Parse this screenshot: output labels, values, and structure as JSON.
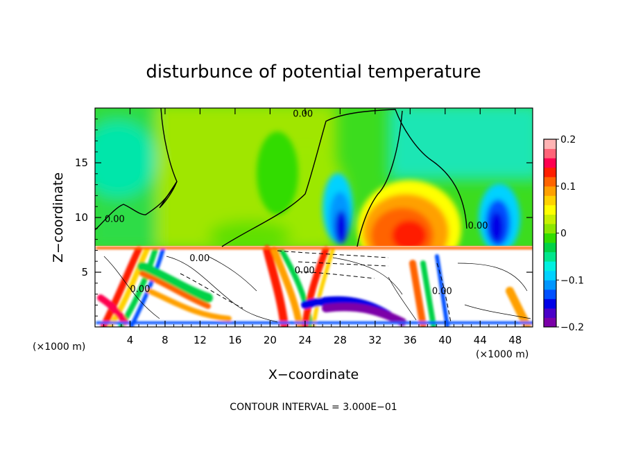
{
  "chart_data": {
    "type": "heatmap",
    "title": "disturbunce of potential temperature",
    "xlabel": "X−coordinate",
    "ylabel": "Z−coordinate",
    "x_unit": "(×1000 m)",
    "x_unit_right": "(×1000 m)",
    "footer": "CONTOUR INTERVAL = 3.000E−01",
    "xlim": [
      0,
      50
    ],
    "ylim": [
      0,
      20
    ],
    "xticks": [
      4,
      8,
      12,
      16,
      20,
      24,
      28,
      32,
      36,
      40,
      44,
      48
    ],
    "yticks": [
      5,
      10,
      15
    ],
    "colorbar": {
      "range": [
        -0.2,
        0.2
      ],
      "tick_values": [
        0.2,
        0.1,
        0,
        -0.1,
        -0.2
      ],
      "tick_labels": [
        "0.2",
        "0.1",
        "0",
        "−0.1",
        "−0.2"
      ],
      "colors": [
        "#7b00a8",
        "#4a00c8",
        "#0000e6",
        "#0050ff",
        "#0096ff",
        "#00d2ff",
        "#00f0e0",
        "#00e68c",
        "#00d246",
        "#32dc00",
        "#8ce600",
        "#c8f000",
        "#ffff00",
        "#ffd200",
        "#ffa000",
        "#ff6400",
        "#ff1e00",
        "#ff0050",
        "#ff6478",
        "#ffb4b4"
      ]
    },
    "contour_labels": [
      {
        "text": "0.00",
        "x": 22.6,
        "z": 19.2
      },
      {
        "text": "0.00",
        "x": 1.1,
        "z": 9.6
      },
      {
        "text": "0.00",
        "x": 42.6,
        "z": 9.0
      },
      {
        "text": "0.00",
        "x": 10.8,
        "z": 6.0
      },
      {
        "text": "0.00",
        "x": 22.8,
        "z": 4.9
      },
      {
        "text": "0.00",
        "x": 4.0,
        "z": 3.2
      },
      {
        "text": "0.00",
        "x": 38.5,
        "z": 3.0
      }
    ]
  }
}
